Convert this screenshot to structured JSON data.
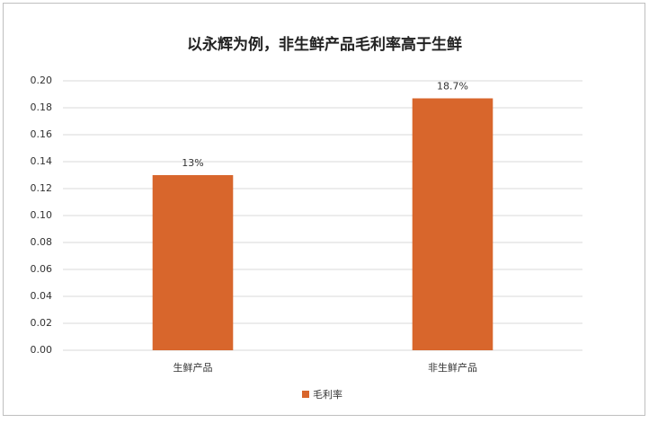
{
  "chart_data": {
    "type": "bar",
    "title": "以永辉为例，非生鲜产品毛利率高于生鲜",
    "categories": [
      "生鲜产品",
      "非生鲜产品"
    ],
    "series": [
      {
        "name": "毛利率",
        "color": "#d8662c",
        "values": [
          0.13,
          0.187
        ],
        "value_labels": [
          "13%",
          "18.7%"
        ]
      }
    ],
    "ylim": [
      0,
      0.2
    ],
    "yticks": [
      {
        "value": 0,
        "label": "0.00"
      },
      {
        "value": 0.02,
        "label": "0.02"
      },
      {
        "value": 0.04,
        "label": "0.04"
      },
      {
        "value": 0.06,
        "label": "0.06"
      },
      {
        "value": 0.08,
        "label": "0.08"
      },
      {
        "value": 0.1,
        "label": "0.10"
      },
      {
        "value": 0.12,
        "label": "0.12"
      },
      {
        "value": 0.14,
        "label": "0.14"
      },
      {
        "value": 0.16,
        "label": "0.16"
      },
      {
        "value": 0.18,
        "label": "0.18"
      },
      {
        "value": 0.2,
        "label": "0.20"
      }
    ],
    "grid": true,
    "legend": "bottom"
  }
}
